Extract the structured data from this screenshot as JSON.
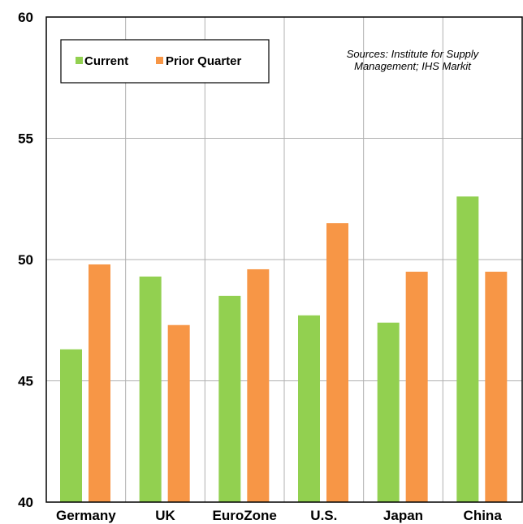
{
  "chart_data": {
    "type": "bar",
    "categories": [
      "Germany",
      "UK",
      "EuroZone",
      "U.S.",
      "Japan",
      "China"
    ],
    "series": [
      {
        "name": "Current",
        "color": "#92d050",
        "values": [
          46.3,
          49.3,
          48.5,
          47.7,
          47.4,
          52.6
        ]
      },
      {
        "name": "Prior Quarter",
        "color": "#f79646",
        "values": [
          49.8,
          47.3,
          49.6,
          51.5,
          49.5,
          49.5
        ]
      }
    ],
    "y_ticks": [
      "40",
      "45",
      "50",
      "55",
      "60"
    ],
    "ylim": [
      40,
      60
    ],
    "grid": true,
    "legend_position": "top-left",
    "annotation": [
      "Sources: Institute for Supply",
      "Management; IHS Markit"
    ]
  }
}
